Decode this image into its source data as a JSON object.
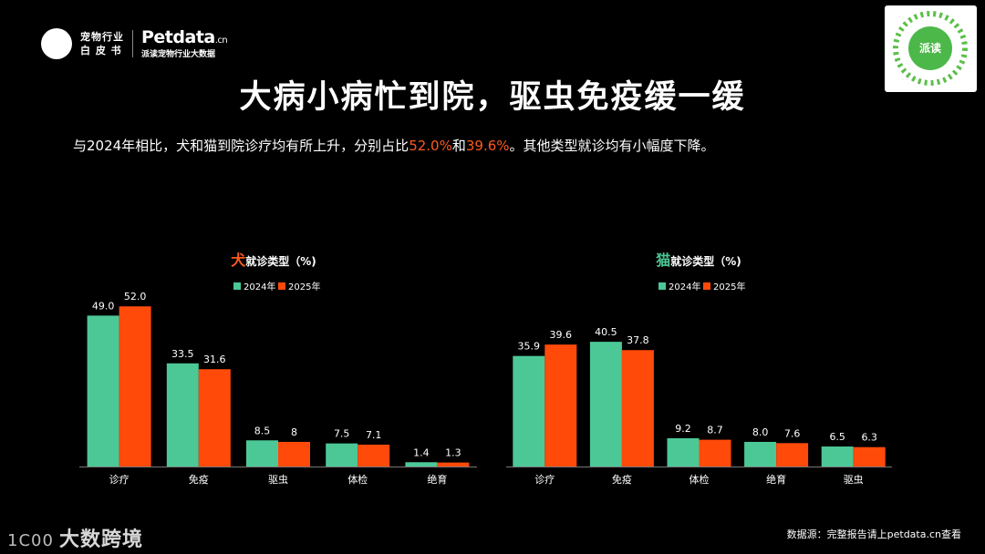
{
  "header": {
    "logo_line1": "宠物行业",
    "logo_line2": "白 皮 书",
    "brand_main": "Petdata",
    "brand_suffix": ".cn",
    "brand_sub": "派读宠物行业大数据",
    "qr_label": "派读"
  },
  "title": "大病小病忙到院，驱虫免疫缓一缓",
  "subtitle": {
    "part1": "与2024年相比，犬和猫到院诊疗均有所上升，分别占比",
    "hl1": "52.0%",
    "part2": "和",
    "hl2": "39.6%",
    "part3": "。其他类型就诊均有小幅度下降。"
  },
  "colors": {
    "y2024": "#4cc896",
    "y2025": "#ff4a0a",
    "accent_dog": "#ff5a1f",
    "accent_cat": "#4cc896"
  },
  "chart_data": [
    {
      "type": "bar",
      "title_prefix": "犬",
      "title_suffix": "就诊类型（%)",
      "legend": [
        "2024年",
        "2025年"
      ],
      "categories": [
        "诊疗",
        "免疫",
        "驱虫",
        "体检",
        "绝育"
      ],
      "series": [
        {
          "name": "2024年",
          "values": [
            49.0,
            33.5,
            8.5,
            7.5,
            1.4
          ],
          "labels": [
            "49.0",
            "33.5",
            "8.5",
            "7.5",
            "1.4"
          ]
        },
        {
          "name": "2025年",
          "values": [
            52.0,
            31.6,
            8,
            7.1,
            1.3
          ],
          "labels": [
            "52.0",
            "31.6",
            "8",
            "7.1",
            "1.3"
          ]
        }
      ],
      "ylim": [
        0,
        52
      ]
    },
    {
      "type": "bar",
      "title_prefix": "猫",
      "title_suffix": "就诊类型（%)",
      "legend": [
        "2024年",
        "2025年"
      ],
      "categories": [
        "诊疗",
        "免疫",
        "体检",
        "绝育",
        "驱虫"
      ],
      "series": [
        {
          "name": "2024年",
          "values": [
            35.9,
            40.5,
            9.2,
            8.0,
            6.5
          ],
          "labels": [
            "35.9",
            "40.5",
            "9.2",
            "8.0",
            "6.5"
          ]
        },
        {
          "name": "2025年",
          "values": [
            39.6,
            37.8,
            8.7,
            7.6,
            6.3
          ],
          "labels": [
            "39.6",
            "37.8",
            "8.7",
            "7.6",
            "6.3"
          ]
        }
      ],
      "ylim": [
        0,
        52
      ]
    }
  ],
  "footer": {
    "logo_text": "大数跨境",
    "logo_mark": "1C00",
    "source": "数据源：完整报告请上petdata.cn查看"
  }
}
